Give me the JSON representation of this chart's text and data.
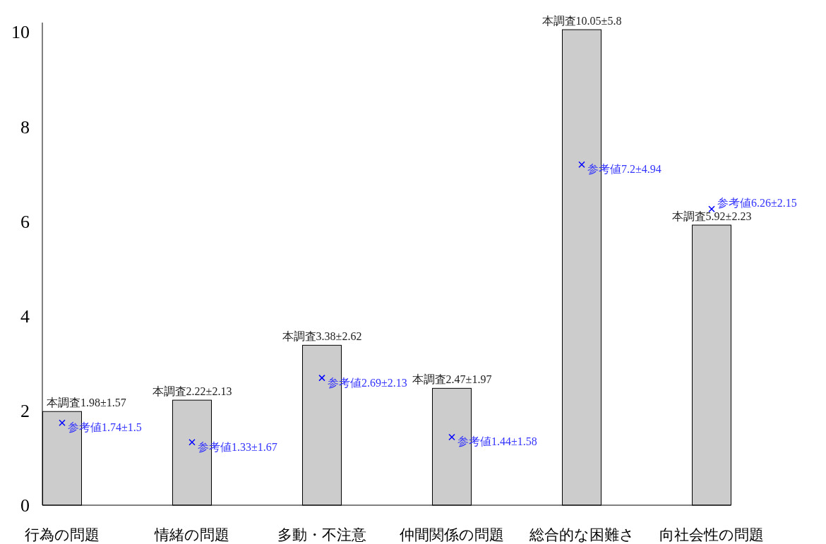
{
  "chart_data": {
    "type": "bar",
    "categories": [
      "行為の問題",
      "情緒の問題",
      "多動・不注意",
      "仲間関係の問題",
      "総合的な困難さ",
      "向社会性の問題"
    ],
    "series": [
      {
        "type": "bar",
        "color": "#cccccc",
        "values": [
          1.98,
          2.22,
          3.38,
          2.47,
          10.05,
          5.92
        ],
        "value_labels": [
          "本調査1.98±1.57",
          "本調査2.22±2.13",
          "本調査3.38±2.62",
          "本調査2.47±1.97",
          "本調査10.05±5.8",
          "本調査5.92±2.23"
        ]
      },
      {
        "type": "scatter",
        "marker": "cross",
        "color": "#0000ff",
        "x": [
          "行為の問題",
          "情緒の問題",
          "多動・不注意",
          "仲間関係の問題",
          "総合的な困難さ",
          "向社会性の問題"
        ],
        "values": [
          1.74,
          1.33,
          2.69,
          1.44,
          7.2,
          6.26
        ],
        "value_labels": [
          "参考値1.74±1.5",
          "参考値1.33±1.67",
          "参考値2.69±2.13",
          "参考値1.44±1.58",
          "参考値7.2±4.94",
          "参考値6.26±2.15"
        ]
      }
    ],
    "ylim": [
      0,
      10.2
    ],
    "yticks": [
      0,
      2,
      4,
      6,
      8,
      10
    ],
    "grid": false
  }
}
